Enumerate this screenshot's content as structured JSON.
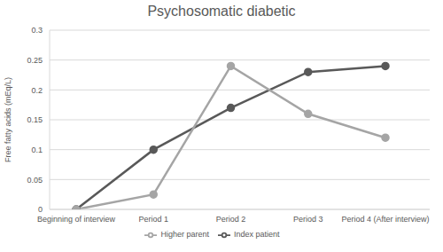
{
  "chart_data": {
    "type": "line",
    "title": "Psychosomatic diabetic",
    "y_label": "Free fatty acids (mEq/L)",
    "categories": [
      "Beginning of interview",
      "Period 1",
      "Period 2",
      "Period 3",
      "Period 4 (After interview)"
    ],
    "series": [
      {
        "name": "Index patient",
        "color": "#595959",
        "marker": "circle",
        "values": [
          0,
          0.1,
          0.17,
          0.23,
          0.24
        ]
      },
      {
        "name": "Higher parent",
        "color": "#a5a5a5",
        "marker": "circle",
        "values": [
          0,
          0.025,
          0.24,
          0.16,
          0.12
        ]
      }
    ],
    "ylim": [
      0,
      0.3
    ],
    "yticks": [
      0,
      0.05,
      0.1,
      0.15,
      0.2,
      0.25,
      0.3
    ],
    "grid": true,
    "legend": "bottom"
  }
}
